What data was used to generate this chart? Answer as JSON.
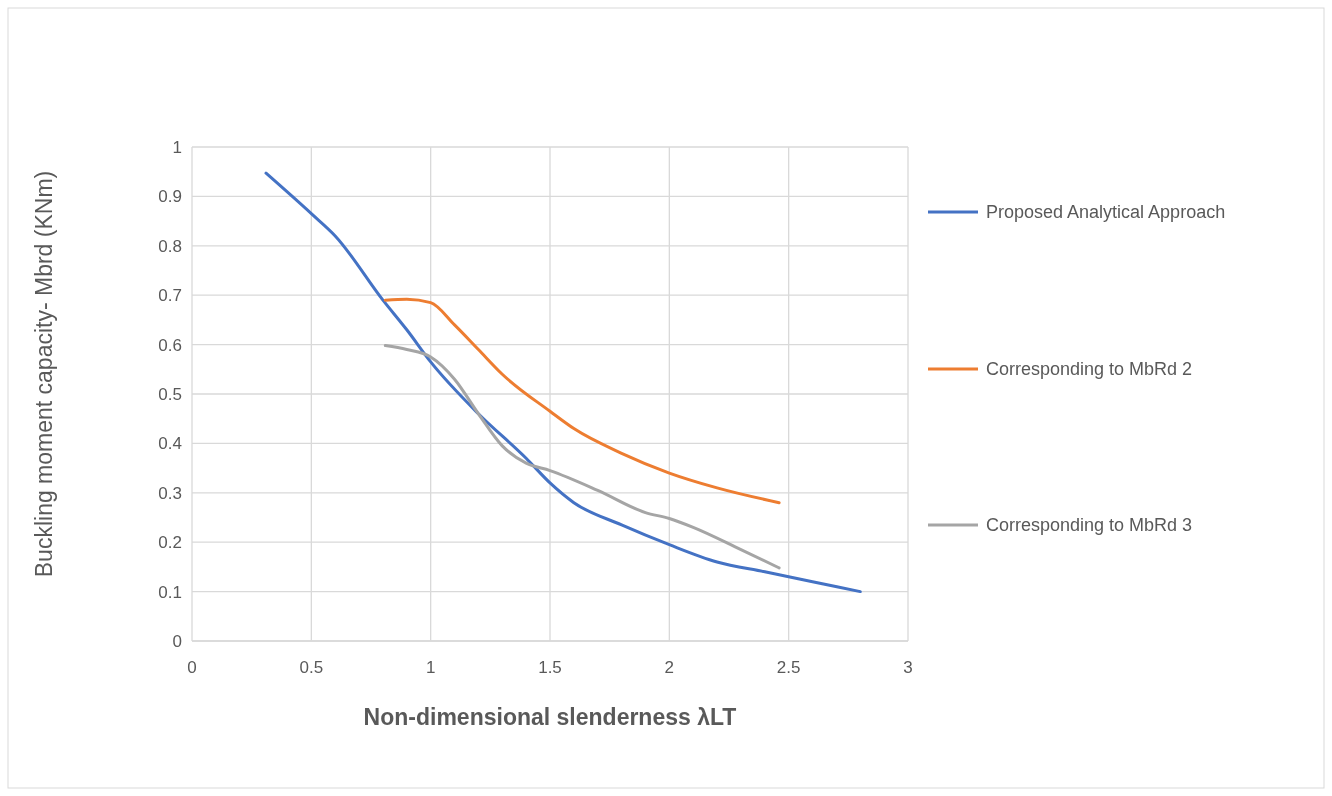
{
  "chart_data": {
    "type": "line",
    "xlabel": "Non-dimensional slenderness λLT",
    "ylabel": "Buckling moment capacity- Mbrd (KNm)",
    "xlim": [
      0,
      3
    ],
    "ylim": [
      0,
      1
    ],
    "xticks": [
      0,
      0.5,
      1,
      1.5,
      2,
      2.5,
      3
    ],
    "yticks": [
      0,
      0.1,
      0.2,
      0.3,
      0.4,
      0.5,
      0.6,
      0.7,
      0.8,
      0.9,
      1
    ],
    "grid": true,
    "legend": "right",
    "marker": "none",
    "line_style": "solid",
    "series": [
      {
        "name": "Proposed Analytical Approach",
        "color": "#4472c4",
        "x": [
          0.31,
          0.5,
          0.6,
          0.8,
          0.9,
          1.0,
          1.2,
          1.4,
          1.5,
          1.6,
          1.8,
          2.0,
          2.2,
          2.4,
          2.6,
          2.8
        ],
        "values": [
          0.947,
          0.865,
          0.82,
          0.69,
          0.63,
          0.565,
          0.46,
          0.37,
          0.32,
          0.28,
          0.235,
          0.195,
          0.16,
          0.14,
          0.12,
          0.1
        ]
      },
      {
        "name": "Corresponding to MbRd 2",
        "color": "#ed7d31",
        "x": [
          0.81,
          0.9,
          1.0,
          1.1,
          1.2,
          1.3,
          1.5,
          1.6,
          1.8,
          2.0,
          2.2,
          2.46
        ],
        "values": [
          0.69,
          0.692,
          0.685,
          0.64,
          0.59,
          0.54,
          0.465,
          0.43,
          0.38,
          0.34,
          0.31,
          0.28
        ]
      },
      {
        "name": "Corresponding to MbRd 3",
        "color": "#a5a5a5",
        "x": [
          0.81,
          0.9,
          1.0,
          1.1,
          1.2,
          1.3,
          1.4,
          1.5,
          1.7,
          1.9,
          2.0,
          2.1,
          2.3,
          2.46
        ],
        "values": [
          0.598,
          0.59,
          0.575,
          0.53,
          0.46,
          0.395,
          0.36,
          0.345,
          0.305,
          0.26,
          0.248,
          0.23,
          0.185,
          0.148
        ]
      }
    ]
  }
}
